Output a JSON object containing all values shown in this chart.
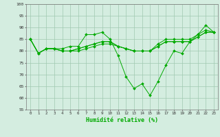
{
  "xlabel": "Humidité relative (%)",
  "background_color": "#d4ede0",
  "grid_color": "#a0c8b0",
  "line_color": "#00aa00",
  "ylim": [
    55,
    100
  ],
  "xlim": [
    -0.5,
    23.5
  ],
  "yticks": [
    55,
    60,
    65,
    70,
    75,
    80,
    85,
    90,
    95,
    100
  ],
  "xticks": [
    0,
    1,
    2,
    3,
    4,
    5,
    6,
    7,
    8,
    9,
    10,
    11,
    12,
    13,
    14,
    15,
    16,
    17,
    18,
    19,
    20,
    21,
    22,
    23
  ],
  "series": [
    [
      85,
      79,
      81,
      81,
      81,
      82,
      82,
      87,
      87,
      88,
      85,
      78,
      69,
      64,
      66,
      61,
      67,
      74,
      80,
      79,
      84,
      87,
      91,
      88
    ],
    [
      85,
      79,
      81,
      81,
      80,
      80,
      81,
      82,
      83,
      84,
      84,
      82,
      81,
      80,
      80,
      80,
      82,
      84,
      84,
      84,
      84,
      86,
      88,
      88
    ],
    [
      85,
      79,
      81,
      81,
      80,
      80,
      81,
      82,
      83,
      84,
      84,
      82,
      81,
      80,
      80,
      80,
      83,
      85,
      85,
      85,
      85,
      87,
      89,
      88
    ],
    [
      85,
      79,
      81,
      81,
      80,
      80,
      80,
      81,
      82,
      83,
      83,
      82,
      81,
      80,
      80,
      80,
      82,
      84,
      84,
      84,
      84,
      86,
      88,
      88
    ]
  ]
}
